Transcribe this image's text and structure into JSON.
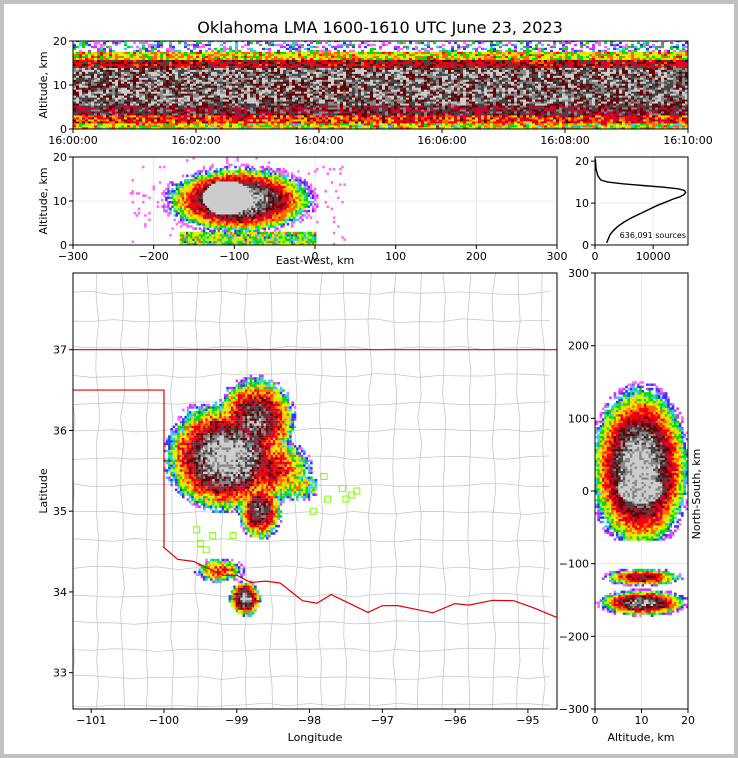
{
  "chart_data": [
    {
      "type": "heatmap",
      "panel": "altitude-time",
      "title": "Oklahoma LMA 1600-1610 UTC June 23, 2023",
      "ylabel": "Altitude, km",
      "ylim": [
        0,
        20
      ],
      "yticks": [
        "0",
        "10",
        "20"
      ],
      "xticks": [
        "16:00:00",
        "16:02:00",
        "16:04:00",
        "16:06:00",
        "16:08:00",
        "16:10:00"
      ]
    },
    {
      "type": "heatmap",
      "panel": "east-west-altitude",
      "xlabel": "East-West, km",
      "ylabel": "Altitude, km",
      "xlim": [
        -300,
        300
      ],
      "ylim": [
        0,
        20
      ],
      "xticks": [
        "−300",
        "−200",
        "−100",
        "0",
        "100",
        "200",
        "300"
      ],
      "yticks": [
        "0",
        "10",
        "20"
      ]
    },
    {
      "type": "line",
      "panel": "altitude-histogram",
      "annotation": "636,091 sources",
      "xlim": [
        0,
        16000
      ],
      "ylim": [
        0,
        21
      ],
      "xticks": [
        "0",
        "10000"
      ],
      "yticks": [
        "0",
        "10",
        "20"
      ],
      "x": [
        2000,
        2300,
        2600,
        3200,
        4000,
        5000,
        6300,
        7800,
        9300,
        10800,
        12300,
        13500,
        14600,
        15300,
        15600,
        15400,
        14300,
        11800,
        8200,
        4800,
        2200,
        1000,
        500,
        200,
        50
      ],
      "y": [
        0.5,
        1.5,
        2.5,
        3.5,
        4.5,
        5.5,
        6.5,
        7.5,
        8.5,
        9.5,
        10.3,
        11.0,
        11.5,
        12.0,
        12.5,
        13.0,
        13.4,
        13.8,
        14.2,
        14.6,
        15.0,
        15.5,
        16.5,
        18.0,
        20.5
      ]
    },
    {
      "type": "heatmap",
      "panel": "plan-view",
      "xlabel": "Longitude",
      "ylabel": "Latitude",
      "xlim": [
        -101.25,
        -94.6
      ],
      "ylim": [
        32.55,
        37.95
      ],
      "xticks": [
        "−101",
        "−100",
        "−99",
        "−98",
        "−97",
        "−96",
        "−95"
      ],
      "yticks": [
        "33",
        "34",
        "35",
        "36",
        "37"
      ],
      "stations": [
        [
          -99.55,
          34.77
        ],
        [
          -99.5,
          34.6
        ],
        [
          -99.42,
          34.52
        ],
        [
          -99.33,
          34.7
        ],
        [
          -99.05,
          34.7
        ],
        [
          -97.8,
          35.43
        ],
        [
          -97.75,
          35.15
        ],
        [
          -97.95,
          35.0
        ],
        [
          -97.55,
          35.28
        ],
        [
          -97.5,
          35.15
        ],
        [
          -97.42,
          35.2
        ],
        [
          -97.35,
          35.25
        ]
      ]
    },
    {
      "type": "heatmap",
      "panel": "north-south-altitude",
      "xlabel": "Altitude, km",
      "ylabel": "North-South, km",
      "xlim": [
        0,
        20
      ],
      "ylim": [
        -300,
        300
      ],
      "xticks": [
        "0",
        "10",
        "20"
      ],
      "yticks": [
        "−300",
        "−200",
        "−100",
        "0",
        "100",
        "200",
        "300"
      ]
    }
  ]
}
